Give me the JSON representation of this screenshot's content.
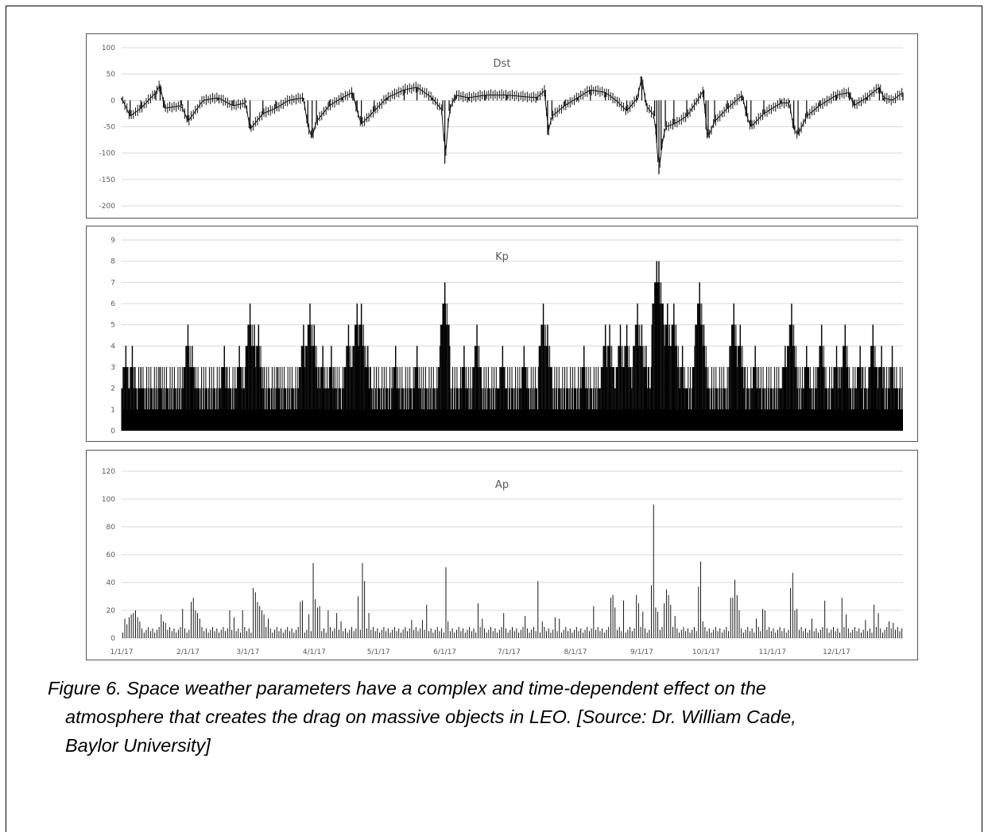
{
  "caption": {
    "line1": "Figure 6. Space weather parameters have a complex and time-dependent effect on the",
    "line2": "atmosphere that creates the drag on massive objects in LEO. [Source: Dr. William Cade,",
    "line3": "Baylor University]"
  },
  "x_axis": {
    "tick_labels": [
      "1/1/17",
      "2/1/17",
      "3/1/17",
      "4/1/17",
      "5/1/17",
      "6/1/17",
      "7/1/17",
      "8/1/17",
      "9/1/17",
      "10/1/17",
      "11/1/17",
      "12/1/17"
    ],
    "tick_days": [
      0,
      31,
      59,
      90,
      120,
      151,
      181,
      212,
      243,
      273,
      304,
      334
    ],
    "days": 365
  },
  "chart_data": [
    {
      "type": "line",
      "title": "Dst",
      "ylim": [
        -200,
        100
      ],
      "yticks": [
        100,
        50,
        0,
        -50,
        -100,
        -150,
        -200
      ],
      "grid": true,
      "series_style": "daily high-low range bars",
      "x_unit": "days from 1/1/17",
      "peaks": [
        {
          "x": 0,
          "y": 5
        },
        {
          "x": 4,
          "y": -30
        },
        {
          "x": 9,
          "y": -15
        },
        {
          "x": 16,
          "y": 15
        },
        {
          "x": 18,
          "y": 30
        },
        {
          "x": 20,
          "y": -15
        },
        {
          "x": 28,
          "y": -10
        },
        {
          "x": 31,
          "y": -40
        },
        {
          "x": 38,
          "y": 0
        },
        {
          "x": 45,
          "y": 5
        },
        {
          "x": 52,
          "y": -10
        },
        {
          "x": 58,
          "y": -5
        },
        {
          "x": 60,
          "y": -55
        },
        {
          "x": 66,
          "y": -25
        },
        {
          "x": 72,
          "y": -15
        },
        {
          "x": 78,
          "y": 0
        },
        {
          "x": 85,
          "y": 5
        },
        {
          "x": 87,
          "y": -50
        },
        {
          "x": 89,
          "y": -70
        },
        {
          "x": 91,
          "y": -40
        },
        {
          "x": 97,
          "y": -10
        },
        {
          "x": 103,
          "y": 5
        },
        {
          "x": 108,
          "y": 15
        },
        {
          "x": 110,
          "y": -20
        },
        {
          "x": 112,
          "y": -45
        },
        {
          "x": 118,
          "y": -20
        },
        {
          "x": 124,
          "y": 5
        },
        {
          "x": 132,
          "y": 20
        },
        {
          "x": 138,
          "y": 25
        },
        {
          "x": 145,
          "y": 5
        },
        {
          "x": 150,
          "y": -20
        },
        {
          "x": 151,
          "y": -120
        },
        {
          "x": 153,
          "y": -20
        },
        {
          "x": 156,
          "y": 10
        },
        {
          "x": 162,
          "y": 5
        },
        {
          "x": 170,
          "y": 10
        },
        {
          "x": 180,
          "y": 10
        },
        {
          "x": 194,
          "y": 5
        },
        {
          "x": 198,
          "y": 20
        },
        {
          "x": 199,
          "y": -65
        },
        {
          "x": 201,
          "y": -30
        },
        {
          "x": 207,
          "y": -10
        },
        {
          "x": 213,
          "y": 5
        },
        {
          "x": 219,
          "y": 20
        },
        {
          "x": 226,
          "y": 15
        },
        {
          "x": 231,
          "y": 0
        },
        {
          "x": 236,
          "y": -20
        },
        {
          "x": 241,
          "y": 5
        },
        {
          "x": 243,
          "y": 45
        },
        {
          "x": 245,
          "y": -10
        },
        {
          "x": 249,
          "y": -30
        },
        {
          "x": 250,
          "y": -80
        },
        {
          "x": 251,
          "y": -140
        },
        {
          "x": 252,
          "y": -95
        },
        {
          "x": 254,
          "y": -50
        },
        {
          "x": 258,
          "y": -45
        },
        {
          "x": 264,
          "y": -30
        },
        {
          "x": 269,
          "y": 0
        },
        {
          "x": 272,
          "y": 20
        },
        {
          "x": 273,
          "y": -55
        },
        {
          "x": 274,
          "y": -70
        },
        {
          "x": 277,
          "y": -40
        },
        {
          "x": 283,
          "y": -15
        },
        {
          "x": 290,
          "y": 10
        },
        {
          "x": 292,
          "y": -30
        },
        {
          "x": 294,
          "y": -50
        },
        {
          "x": 300,
          "y": -25
        },
        {
          "x": 308,
          "y": -5
        },
        {
          "x": 312,
          "y": -5
        },
        {
          "x": 314,
          "y": -55
        },
        {
          "x": 316,
          "y": -65
        },
        {
          "x": 320,
          "y": -30
        },
        {
          "x": 326,
          "y": -10
        },
        {
          "x": 334,
          "y": 10
        },
        {
          "x": 340,
          "y": 15
        },
        {
          "x": 342,
          "y": -10
        },
        {
          "x": 348,
          "y": 5
        },
        {
          "x": 354,
          "y": 25
        },
        {
          "x": 356,
          "y": 5
        },
        {
          "x": 360,
          "y": 0
        },
        {
          "x": 365,
          "y": 15
        }
      ]
    },
    {
      "type": "bar",
      "title": "Kp",
      "ylim": [
        0,
        9
      ],
      "yticks": [
        9,
        8,
        7,
        6,
        5,
        4,
        3,
        2,
        1,
        0
      ],
      "grid": true,
      "series_style": "3-hourly bars (dense)",
      "x_unit": "days from 1/1/17",
      "background_level": 1,
      "peaks": [
        {
          "x": 2,
          "y": 4
        },
        {
          "x": 5,
          "y": 4
        },
        {
          "x": 9,
          "y": 3
        },
        {
          "x": 18,
          "y": 3
        },
        {
          "x": 31,
          "y": 5
        },
        {
          "x": 33,
          "y": 4
        },
        {
          "x": 48,
          "y": 4
        },
        {
          "x": 55,
          "y": 4
        },
        {
          "x": 60,
          "y": 6
        },
        {
          "x": 62,
          "y": 5
        },
        {
          "x": 64,
          "y": 5
        },
        {
          "x": 73,
          "y": 3
        },
        {
          "x": 85,
          "y": 5
        },
        {
          "x": 88,
          "y": 6
        },
        {
          "x": 90,
          "y": 5
        },
        {
          "x": 94,
          "y": 4
        },
        {
          "x": 98,
          "y": 4
        },
        {
          "x": 106,
          "y": 5
        },
        {
          "x": 110,
          "y": 6
        },
        {
          "x": 112,
          "y": 6
        },
        {
          "x": 115,
          "y": 4
        },
        {
          "x": 128,
          "y": 4
        },
        {
          "x": 138,
          "y": 4
        },
        {
          "x": 150,
          "y": 5
        },
        {
          "x": 151,
          "y": 7
        },
        {
          "x": 160,
          "y": 4
        },
        {
          "x": 166,
          "y": 5
        },
        {
          "x": 178,
          "y": 4
        },
        {
          "x": 188,
          "y": 4
        },
        {
          "x": 197,
          "y": 6
        },
        {
          "x": 199,
          "y": 5
        },
        {
          "x": 216,
          "y": 4
        },
        {
          "x": 226,
          "y": 5
        },
        {
          "x": 228,
          "y": 5
        },
        {
          "x": 233,
          "y": 5
        },
        {
          "x": 236,
          "y": 5
        },
        {
          "x": 241,
          "y": 6
        },
        {
          "x": 243,
          "y": 5
        },
        {
          "x": 245,
          "y": 4
        },
        {
          "x": 250,
          "y": 8
        },
        {
          "x": 251,
          "y": 8
        },
        {
          "x": 255,
          "y": 6
        },
        {
          "x": 258,
          "y": 6
        },
        {
          "x": 262,
          "y": 4
        },
        {
          "x": 269,
          "y": 5
        },
        {
          "x": 270,
          "y": 7
        },
        {
          "x": 272,
          "y": 5
        },
        {
          "x": 286,
          "y": 6
        },
        {
          "x": 289,
          "y": 5
        },
        {
          "x": 296,
          "y": 4
        },
        {
          "x": 310,
          "y": 4
        },
        {
          "x": 313,
          "y": 6
        },
        {
          "x": 320,
          "y": 4
        },
        {
          "x": 327,
          "y": 5
        },
        {
          "x": 334,
          "y": 4
        },
        {
          "x": 338,
          "y": 5
        },
        {
          "x": 345,
          "y": 4
        },
        {
          "x": 351,
          "y": 5
        },
        {
          "x": 355,
          "y": 4
        },
        {
          "x": 360,
          "y": 4
        }
      ]
    },
    {
      "type": "bar",
      "title": "Ap",
      "ylim": [
        0,
        120
      ],
      "yticks": [
        120,
        100,
        80,
        60,
        40,
        20,
        0
      ],
      "grid": true,
      "series_style": "daily bars",
      "x_unit": "days from 1/1/17",
      "background_level": 6,
      "peaks": [
        {
          "x": 1,
          "y": 14
        },
        {
          "x": 2,
          "y": 10
        },
        {
          "x": 3,
          "y": 15
        },
        {
          "x": 4,
          "y": 17
        },
        {
          "x": 5,
          "y": 18
        },
        {
          "x": 6,
          "y": 20
        },
        {
          "x": 7,
          "y": 15
        },
        {
          "x": 8,
          "y": 12
        },
        {
          "x": 18,
          "y": 17
        },
        {
          "x": 19,
          "y": 12
        },
        {
          "x": 20,
          "y": 11
        },
        {
          "x": 28,
          "y": 21
        },
        {
          "x": 32,
          "y": 26
        },
        {
          "x": 33,
          "y": 29
        },
        {
          "x": 34,
          "y": 20
        },
        {
          "x": 35,
          "y": 18
        },
        {
          "x": 36,
          "y": 14
        },
        {
          "x": 50,
          "y": 20
        },
        {
          "x": 52,
          "y": 15
        },
        {
          "x": 56,
          "y": 20
        },
        {
          "x": 61,
          "y": 36
        },
        {
          "x": 62,
          "y": 33
        },
        {
          "x": 63,
          "y": 26
        },
        {
          "x": 64,
          "y": 23
        },
        {
          "x": 65,
          "y": 20
        },
        {
          "x": 66,
          "y": 17
        },
        {
          "x": 68,
          "y": 14
        },
        {
          "x": 83,
          "y": 26
        },
        {
          "x": 84,
          "y": 27
        },
        {
          "x": 87,
          "y": 17
        },
        {
          "x": 89,
          "y": 54
        },
        {
          "x": 90,
          "y": 28
        },
        {
          "x": 91,
          "y": 22
        },
        {
          "x": 92,
          "y": 23
        },
        {
          "x": 96,
          "y": 20
        },
        {
          "x": 100,
          "y": 18
        },
        {
          "x": 102,
          "y": 12
        },
        {
          "x": 110,
          "y": 30
        },
        {
          "x": 112,
          "y": 54
        },
        {
          "x": 113,
          "y": 41
        },
        {
          "x": 115,
          "y": 18
        },
        {
          "x": 135,
          "y": 13
        },
        {
          "x": 140,
          "y": 13
        },
        {
          "x": 142,
          "y": 24
        },
        {
          "x": 151,
          "y": 51
        },
        {
          "x": 152,
          "y": 12
        },
        {
          "x": 166,
          "y": 25
        },
        {
          "x": 168,
          "y": 14
        },
        {
          "x": 178,
          "y": 18
        },
        {
          "x": 188,
          "y": 16
        },
        {
          "x": 194,
          "y": 41
        },
        {
          "x": 196,
          "y": 12
        },
        {
          "x": 202,
          "y": 15
        },
        {
          "x": 204,
          "y": 14
        },
        {
          "x": 220,
          "y": 23
        },
        {
          "x": 228,
          "y": 29
        },
        {
          "x": 229,
          "y": 31
        },
        {
          "x": 230,
          "y": 22
        },
        {
          "x": 234,
          "y": 27
        },
        {
          "x": 240,
          "y": 31
        },
        {
          "x": 241,
          "y": 25
        },
        {
          "x": 243,
          "y": 19
        },
        {
          "x": 247,
          "y": 38
        },
        {
          "x": 248,
          "y": 96
        },
        {
          "x": 249,
          "y": 22
        },
        {
          "x": 250,
          "y": 19
        },
        {
          "x": 253,
          "y": 25
        },
        {
          "x": 254,
          "y": 35
        },
        {
          "x": 255,
          "y": 31
        },
        {
          "x": 256,
          "y": 24
        },
        {
          "x": 258,
          "y": 16
        },
        {
          "x": 269,
          "y": 37
        },
        {
          "x": 270,
          "y": 55
        },
        {
          "x": 271,
          "y": 12
        },
        {
          "x": 284,
          "y": 29
        },
        {
          "x": 285,
          "y": 29
        },
        {
          "x": 286,
          "y": 42
        },
        {
          "x": 287,
          "y": 31
        },
        {
          "x": 288,
          "y": 20
        },
        {
          "x": 296,
          "y": 14
        },
        {
          "x": 299,
          "y": 21
        },
        {
          "x": 300,
          "y": 20
        },
        {
          "x": 312,
          "y": 36
        },
        {
          "x": 313,
          "y": 47
        },
        {
          "x": 314,
          "y": 20
        },
        {
          "x": 315,
          "y": 21
        },
        {
          "x": 322,
          "y": 14
        },
        {
          "x": 328,
          "y": 27
        },
        {
          "x": 336,
          "y": 29
        },
        {
          "x": 338,
          "y": 17
        },
        {
          "x": 347,
          "y": 13
        },
        {
          "x": 351,
          "y": 24
        },
        {
          "x": 353,
          "y": 18
        },
        {
          "x": 358,
          "y": 12
        },
        {
          "x": 360,
          "y": 11
        }
      ]
    }
  ]
}
